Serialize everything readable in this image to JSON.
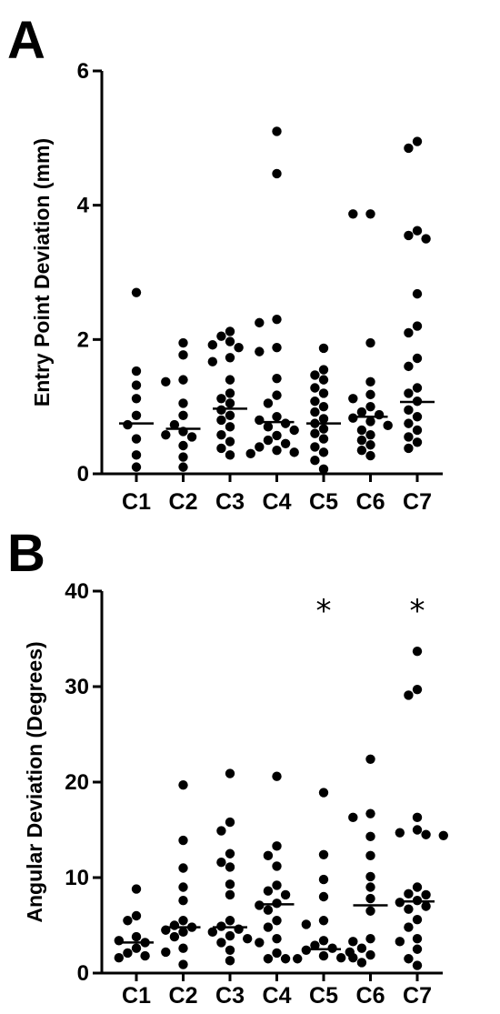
{
  "chart_data": [
    {
      "type": "scatter",
      "panel_label": "A",
      "ylabel": "Entry Point Deviation (mm)",
      "xlabel": "",
      "categories": [
        "C1",
        "C2",
        "C3",
        "C4",
        "C5",
        "C6",
        "C7"
      ],
      "ylim": [
        0,
        6
      ],
      "yticks": [
        0,
        2,
        4,
        6
      ],
      "grid": false,
      "legend": "none",
      "medians": [
        0.75,
        0.67,
        0.97,
        0.77,
        0.75,
        0.85,
        1.07
      ],
      "annotations": [],
      "points": [
        [
          2.7,
          1.53,
          1.32,
          1.12,
          0.87,
          0.73,
          0.52,
          0.28,
          0.1
        ],
        [
          1.95,
          1.77,
          1.4,
          1.37,
          1.05,
          0.87,
          0.73,
          0.63,
          0.58,
          0.55,
          0.42,
          0.25,
          0.1
        ],
        [
          2.12,
          2.05,
          1.97,
          1.92,
          1.88,
          1.73,
          1.67,
          1.4,
          1.2,
          1.12,
          1.05,
          0.95,
          0.87,
          0.8,
          0.7,
          0.58,
          0.48,
          0.38,
          0.28
        ],
        [
          5.1,
          4.47,
          2.3,
          2.25,
          1.88,
          1.82,
          1.42,
          1.17,
          1.05,
          0.85,
          0.8,
          0.75,
          0.7,
          0.65,
          0.57,
          0.5,
          0.45,
          0.4,
          0.35,
          0.32,
          0.3
        ],
        [
          1.87,
          1.55,
          1.47,
          1.4,
          1.28,
          1.2,
          1.08,
          1.0,
          0.92,
          0.82,
          0.75,
          0.67,
          0.6,
          0.52,
          0.4,
          0.32,
          0.2,
          0.07
        ],
        [
          3.87,
          3.87,
          1.95,
          1.37,
          1.18,
          1.12,
          1.0,
          0.92,
          0.88,
          0.83,
          0.78,
          0.72,
          0.65,
          0.58,
          0.5,
          0.43,
          0.35,
          0.27
        ],
        [
          4.95,
          4.85,
          3.62,
          3.55,
          3.5,
          2.68,
          2.2,
          2.1,
          1.72,
          1.6,
          1.28,
          1.2,
          1.08,
          0.95,
          0.85,
          0.75,
          0.65,
          0.55,
          0.47,
          0.38
        ]
      ]
    },
    {
      "type": "scatter",
      "panel_label": "B",
      "ylabel": "Angular Deviation (Degrees)",
      "xlabel": "",
      "categories": [
        "C1",
        "C2",
        "C3",
        "C4",
        "C5",
        "C6",
        "C7"
      ],
      "ylim": [
        0,
        40
      ],
      "yticks": [
        0,
        10,
        20,
        30,
        40
      ],
      "grid": false,
      "legend": "none",
      "medians": [
        3.2,
        4.8,
        4.8,
        7.2,
        2.5,
        7.1,
        7.5
      ],
      "annotations": [
        {
          "category": "C5",
          "text": "*"
        },
        {
          "category": "C7",
          "text": "*"
        }
      ],
      "points": [
        [
          8.8,
          6.0,
          5.5,
          3.8,
          3.4,
          3.2,
          2.6,
          2.1,
          1.8,
          1.6
        ],
        [
          19.7,
          13.9,
          11.0,
          9.0,
          7.6,
          5.5,
          5.0,
          4.8,
          4.5,
          4.3,
          3.8,
          2.6,
          2.2,
          0.9
        ],
        [
          20.9,
          15.8,
          14.9,
          12.5,
          11.6,
          11.1,
          9.3,
          8.2,
          5.5,
          4.9,
          4.6,
          4.3,
          3.9,
          3.6,
          3.2,
          2.4,
          1.3
        ],
        [
          20.6,
          13.3,
          12.3,
          11.2,
          9.2,
          8.6,
          8.2,
          7.3,
          7.1,
          6.6,
          5.5,
          4.8,
          3.6,
          3.2,
          2.1,
          1.5,
          1.5
        ],
        [
          18.9,
          12.4,
          9.8,
          8.0,
          5.5,
          5.1,
          3.4,
          2.9,
          2.6,
          2.4,
          2.2,
          1.8,
          1.6,
          1.5
        ],
        [
          22.4,
          16.7,
          16.3,
          14.3,
          12.3,
          10.1,
          9.0,
          7.8,
          6.5,
          3.6,
          3.3,
          2.6,
          1.9,
          1.6,
          1.1
        ],
        [
          33.7,
          29.7,
          29.1,
          16.3,
          15.0,
          14.7,
          14.5,
          14.4,
          9.0,
          8.3,
          8.2,
          7.6,
          7.4,
          7.0,
          6.7,
          5.6,
          4.8,
          3.6,
          3.3,
          2.5,
          1.5,
          0.8
        ]
      ]
    }
  ]
}
